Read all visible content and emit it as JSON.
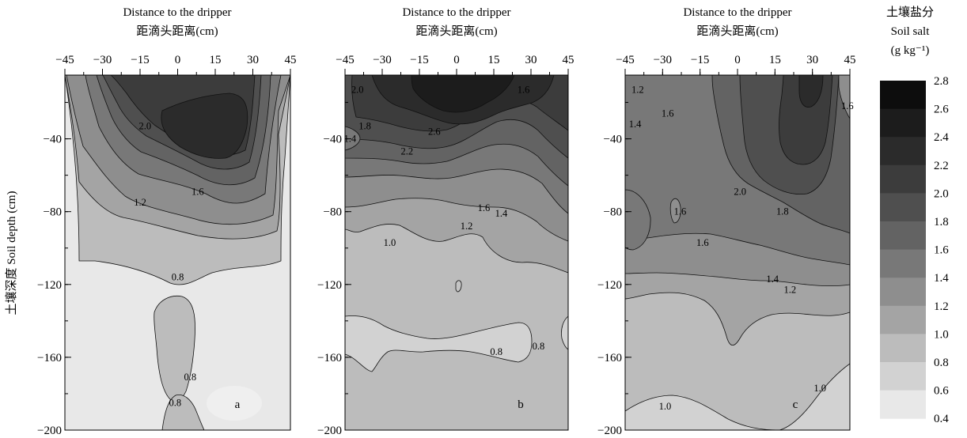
{
  "chart_data": {
    "type": "contour",
    "x_axis": {
      "title_en": "Distance to the dripper",
      "title_zh": "距滴头距离(cm)",
      "ticks": [
        -45,
        -30,
        -15,
        0,
        15,
        30,
        45
      ],
      "range": [
        -45,
        45
      ]
    },
    "y_axis": {
      "title": "土壤深度 Soil depth (cm)",
      "ticks": [
        -40,
        -80,
        -120,
        -160,
        -200
      ],
      "range": [
        -200,
        -5
      ]
    },
    "colorbar": {
      "title_zh": "土壤盐分",
      "title_en": "Soil salt",
      "unit": "(g kg⁻¹)",
      "levels": [
        2.8,
        2.6,
        2.4,
        2.2,
        2.0,
        1.8,
        1.6,
        1.4,
        1.2,
        1.0,
        0.8,
        0.6,
        0.4
      ],
      "labels": [
        "2.8",
        "2.6",
        "2.4",
        "2.2",
        "2.0",
        "1.8",
        "1.6",
        "1.4",
        "1.2",
        "1.0",
        "0.8",
        "0.6",
        "0.4"
      ],
      "colors": [
        "#0d0d0d",
        "#1c1c1c",
        "#2b2b2b",
        "#3c3c3c",
        "#4f4f4f",
        "#636363",
        "#787878",
        "#8e8e8e",
        "#a4a4a4",
        "#bcbcbc",
        "#d2d2d2",
        "#e8e8e8"
      ]
    },
    "panels": [
      {
        "id": "a",
        "label": "a",
        "contour_labels": [
          {
            "text": "2.0",
            "x": -13,
            "y": -33
          },
          {
            "text": "1.6",
            "x": 8,
            "y": -69
          },
          {
            "text": "1.2",
            "x": -15,
            "y": -75
          },
          {
            "text": "0.8",
            "x": 0,
            "y": -116
          },
          {
            "text": "0.8",
            "x": 5,
            "y": -171
          },
          {
            "text": "0.8",
            "x": -1,
            "y": -185
          }
        ]
      },
      {
        "id": "b",
        "label": "b",
        "contour_labels": [
          {
            "text": "2.0",
            "x": -40,
            "y": -13
          },
          {
            "text": "1.6",
            "x": 27,
            "y": -13
          },
          {
            "text": "1.4",
            "x": -43,
            "y": -40
          },
          {
            "text": "1.8",
            "x": -37,
            "y": -33
          },
          {
            "text": "2.6",
            "x": -9,
            "y": -36
          },
          {
            "text": "2.2",
            "x": -20,
            "y": -47
          },
          {
            "text": "1.6",
            "x": 11,
            "y": -78
          },
          {
            "text": "1.4",
            "x": 18,
            "y": -81
          },
          {
            "text": "1.2",
            "x": 4,
            "y": -88
          },
          {
            "text": "1.0",
            "x": -27,
            "y": -97
          },
          {
            "text": "0.8",
            "x": 16,
            "y": -157
          },
          {
            "text": "0.8",
            "x": 33,
            "y": -154
          }
        ]
      },
      {
        "id": "c",
        "label": "c",
        "contour_labels": [
          {
            "text": "1.2",
            "x": -40,
            "y": -13
          },
          {
            "text": "1.6",
            "x": -28,
            "y": -26
          },
          {
            "text": "1.4",
            "x": -41,
            "y": -32
          },
          {
            "text": "1.6",
            "x": 44,
            "y": -22
          },
          {
            "text": "2.0",
            "x": 1,
            "y": -69
          },
          {
            "text": "1.6",
            "x": -23,
            "y": -80
          },
          {
            "text": "1.8",
            "x": 18,
            "y": -80
          },
          {
            "text": "1.6",
            "x": -14,
            "y": -97
          },
          {
            "text": "1.4",
            "x": 14,
            "y": -117
          },
          {
            "text": "1.2",
            "x": 21,
            "y": -123
          },
          {
            "text": "1.0",
            "x": 33,
            "y": -177
          },
          {
            "text": "1.0",
            "x": -29,
            "y": -187
          }
        ]
      }
    ]
  }
}
